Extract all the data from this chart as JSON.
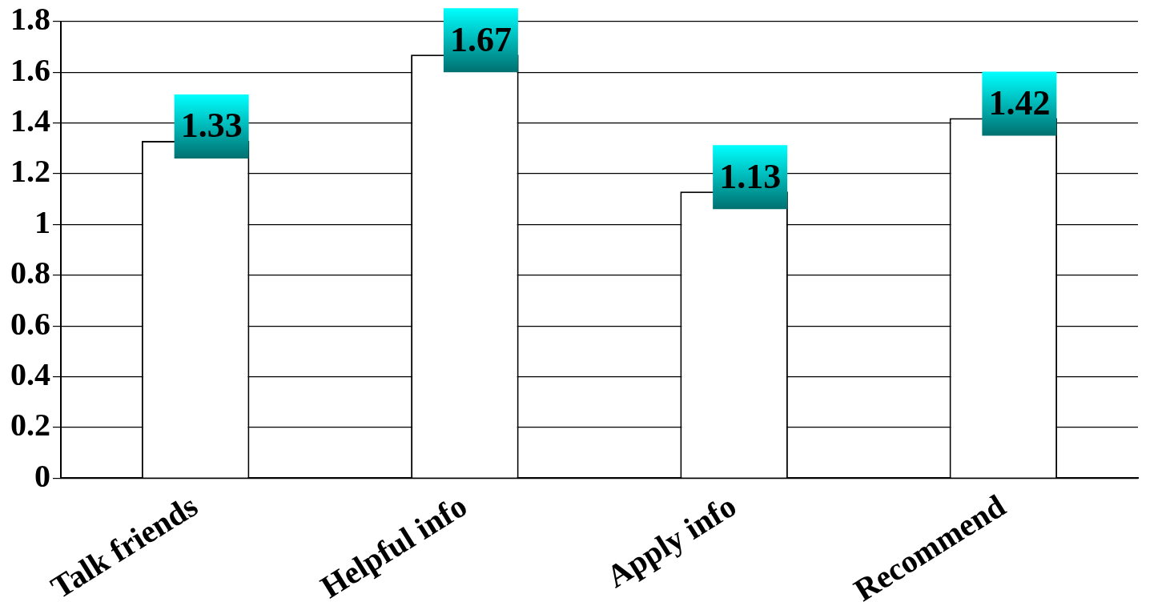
{
  "chart_data": {
    "type": "bar",
    "categories": [
      "Talk friends",
      "Helpful info",
      "Apply info",
      "Recommend"
    ],
    "values": [
      1.33,
      1.67,
      1.13,
      1.42
    ],
    "color": "#ffffff",
    "ylim": [
      0,
      1.8
    ],
    "yticks": [
      0,
      0.2,
      0.4,
      0.6,
      0.8,
      1,
      1.2,
      1.4,
      1.6,
      1.8
    ],
    "grid": "y",
    "legend": false,
    "data_labels": true
  }
}
